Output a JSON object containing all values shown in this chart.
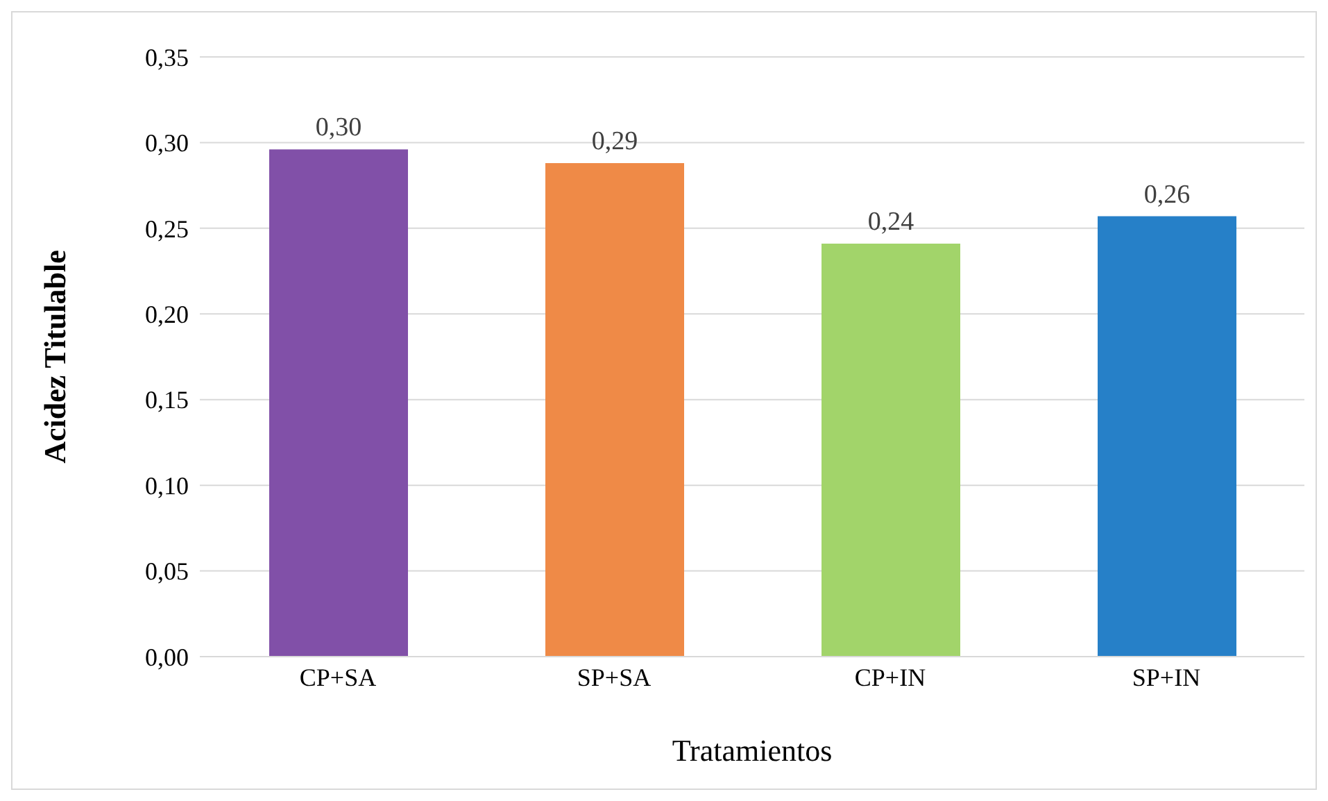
{
  "chart_data": {
    "type": "bar",
    "xlabel": "Tratamientos",
    "ylabel": "Acidez Titulable",
    "categories": [
      "CP+SA",
      "SP+SA",
      "CP+IN",
      "SP+IN"
    ],
    "values": [
      0.296,
      0.288,
      0.241,
      0.257
    ],
    "colors": [
      "#8150a8",
      "#ef8a47",
      "#a2d46a",
      "#2680c8"
    ],
    "value_labels": [
      "0,30",
      "0,29",
      "0,24",
      "0,26"
    ],
    "ylim": [
      0,
      0.35
    ],
    "yticks": [
      {
        "value": 0,
        "label": "0,00"
      },
      {
        "value": 0.05,
        "label": "0,05"
      },
      {
        "value": 0.1,
        "label": "0,10"
      },
      {
        "value": 0.15,
        "label": "0,15"
      },
      {
        "value": 0.2,
        "label": "0,20"
      },
      {
        "value": 0.25,
        "label": "0,25"
      },
      {
        "value": 0.3,
        "label": "0,30"
      },
      {
        "value": 0.35,
        "label": "0,35"
      }
    ],
    "grid": "y",
    "legend": false
  }
}
